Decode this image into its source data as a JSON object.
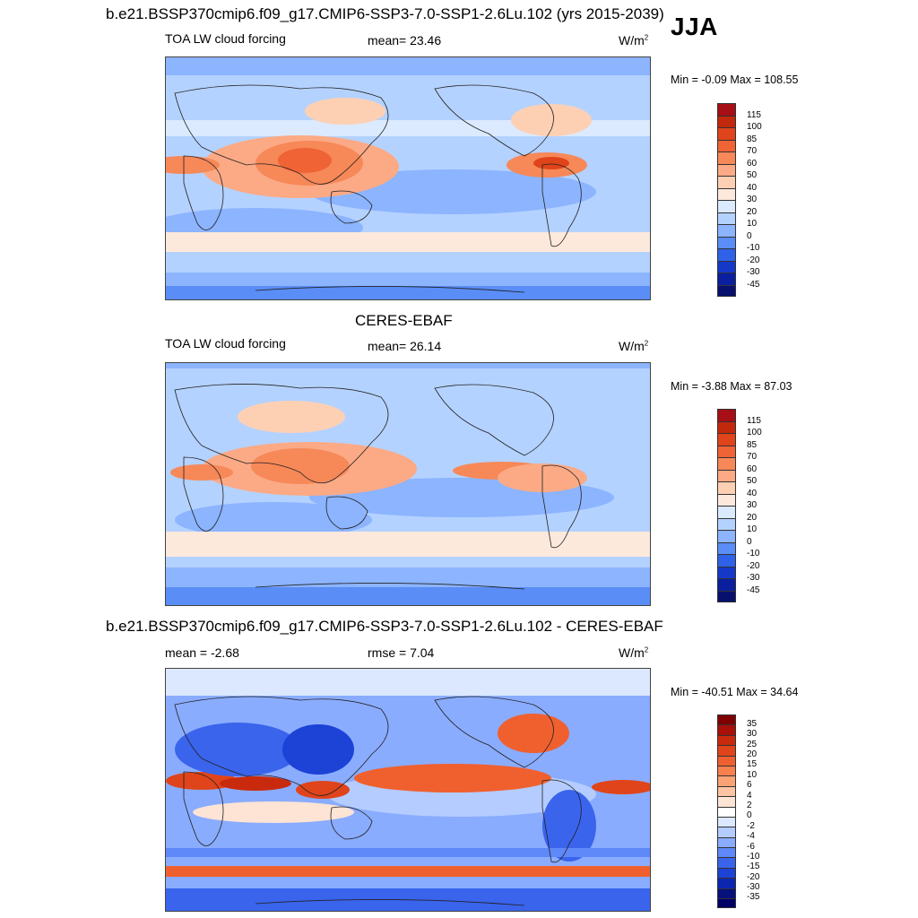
{
  "header": {
    "model_title": "b.e21.BSSP370cmip6.f09_g17.CMIP6-SSP3-7.0-SSP1-2.6Lu.102 (yrs 2015-2039)",
    "season": "JJA"
  },
  "panels": [
    {
      "variable": "TOA LW cloud forcing",
      "mean_text": "mean=  23.46",
      "units": "W/m",
      "units_sup": "2",
      "minmax_text": "Min =  -0.09 Max = 108.55",
      "colorbar_labels": [
        "115",
        "100",
        "85",
        "70",
        "60",
        "50",
        "40",
        "30",
        "20",
        "10",
        "0",
        "-10",
        "-20",
        "-30",
        "-45"
      ],
      "colorbar_colors": [
        "#a50f15",
        "#c2280c",
        "#e0441a",
        "#ef6335",
        "#f78858",
        "#fbaa85",
        "#fdd0b4",
        "#fde9dc",
        "#dbeaff",
        "#b4d2ff",
        "#8cb4ff",
        "#5a8df5",
        "#2f62e8",
        "#1438c8",
        "#0a1f9e",
        "#08106e"
      ]
    },
    {
      "dataset_title": "CERES-EBAF",
      "variable": "TOA LW cloud forcing",
      "mean_text": "mean=  26.14",
      "units": "W/m",
      "units_sup": "2",
      "minmax_text": "Min =  -3.88 Max =  87.03",
      "colorbar_labels": [
        "115",
        "100",
        "85",
        "70",
        "60",
        "50",
        "40",
        "30",
        "20",
        "10",
        "0",
        "-10",
        "-20",
        "-30",
        "-45"
      ],
      "colorbar_colors": [
        "#a50f15",
        "#c2280c",
        "#e0441a",
        "#ef6335",
        "#f78858",
        "#fbaa85",
        "#fdd0b4",
        "#fde9dc",
        "#dbeaff",
        "#b4d2ff",
        "#8cb4ff",
        "#5a8df5",
        "#2f62e8",
        "#1438c8",
        "#0a1f9e",
        "#08106e"
      ]
    },
    {
      "diff_title": "b.e21.BSSP370cmip6.f09_g17.CMIP6-SSP3-7.0-SSP1-2.6Lu.102 - CERES-EBAF",
      "mean_text": "mean =  -2.68",
      "rmse_text": "rmse =   7.04",
      "units": "W/m",
      "units_sup": "2",
      "minmax_text": "Min = -40.51 Max =  34.64",
      "colorbar_labels": [
        "35",
        "30",
        "25",
        "20",
        "15",
        "10",
        "6",
        "4",
        "2",
        "0",
        "-2",
        "-4",
        "-6",
        "-10",
        "-15",
        "-20",
        "-30",
        "-35"
      ],
      "colorbar_colors": [
        "#7f0000",
        "#a81008",
        "#c92a0e",
        "#e0441a",
        "#f0602f",
        "#f7804d",
        "#fba275",
        "#fdc3a2",
        "#fee4d4",
        "#ffffff",
        "#dce8ff",
        "#b4ccff",
        "#8aacff",
        "#5f88f8",
        "#3a64ec",
        "#1c42d6",
        "#0d26b0",
        "#06117c",
        "#000066"
      ]
    }
  ]
}
